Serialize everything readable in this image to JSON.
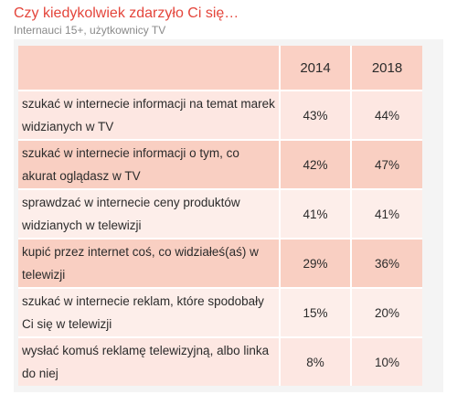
{
  "header": {
    "title": "Czy kiedykolwiek zdarzyło Ci się…",
    "subtitle": "Internauci 15+, użytkownicy TV"
  },
  "chart_data": {
    "type": "table",
    "title": "Czy kiedykolwiek zdarzyło Ci się…",
    "subtitle": "Internauci 15+, użytkownicy TV",
    "columns": [
      "",
      "2014",
      "2018"
    ],
    "rows": [
      {
        "label": "szukać w internecie informacji na temat marek widzianych w TV",
        "v2014": "43%",
        "v2018": "44%"
      },
      {
        "label": "szukać w internecie informacji o tym, co akurat oglądasz w TV",
        "v2014": "42%",
        "v2018": "47%"
      },
      {
        "label": "sprawdzać w internecie ceny produktów widzianych w telewizji",
        "v2014": "41%",
        "v2018": "41%"
      },
      {
        "label": "kupić przez internet coś, co widziałeś(aś) w telewizji",
        "v2014": "29%",
        "v2018": "36%"
      },
      {
        "label": "szukać w internecie reklam, które spodobały Ci się w telewizji",
        "v2014": "15%",
        "v2018": "20%"
      },
      {
        "label": "wysłać komuś reklamę telewizyjną, albo linka do niej",
        "v2014": "8%",
        "v2018": "10%"
      }
    ],
    "colors": {
      "title": "#e4453b",
      "header": "#fad0c4",
      "row_dark": "#fad0c4",
      "row_light": "#fde7e2",
      "background": "#f4f4f4"
    }
  }
}
